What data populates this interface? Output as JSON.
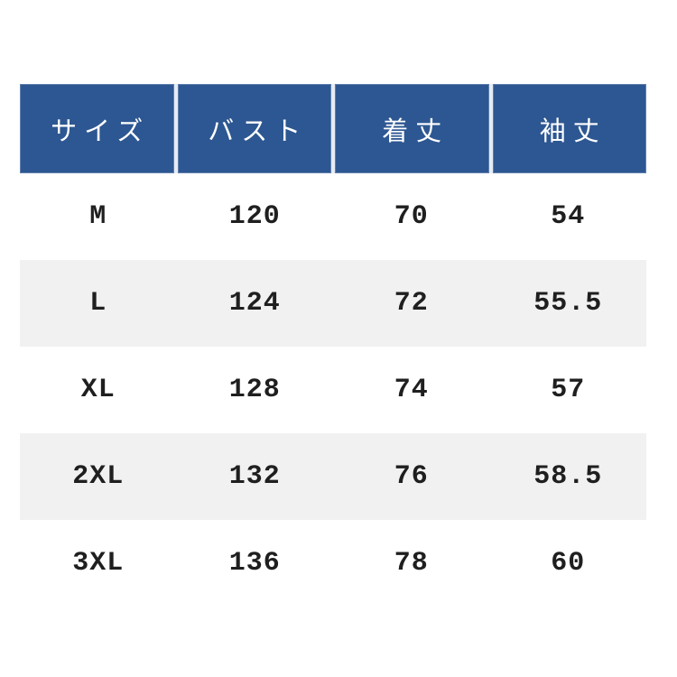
{
  "page": {
    "background_color": "#ffffff"
  },
  "table": {
    "header_bg_color": "#2d5792",
    "header_text_color": "#ffffff",
    "divider_color": "#e6ebf4",
    "alt_row_bg_color": "#f1f1f1",
    "row_text_color": "#1f1f1f",
    "columns": [
      "サイズ",
      "バスト",
      "着丈",
      "袖丈"
    ],
    "rows": [
      {
        "cells": [
          "M",
          "120",
          "70",
          "54"
        ]
      },
      {
        "cells": [
          "L",
          "124",
          "72",
          "55.5"
        ]
      },
      {
        "cells": [
          "XL",
          "128",
          "74",
          "57"
        ]
      },
      {
        "cells": [
          "2XL",
          "132",
          "76",
          "58.5"
        ]
      },
      {
        "cells": [
          "3XL",
          "136",
          "78",
          "60"
        ]
      }
    ]
  },
  "chart_data": {
    "type": "table",
    "title": "",
    "columns": [
      "サイズ",
      "バスト",
      "着丈",
      "袖丈"
    ],
    "rows": [
      [
        "M",
        120,
        70,
        54
      ],
      [
        "L",
        124,
        72,
        55.5
      ],
      [
        "XL",
        128,
        74,
        57
      ],
      [
        "2XL",
        132,
        76,
        58.5
      ],
      [
        "3XL",
        136,
        78,
        60
      ]
    ],
    "layout_hints": {
      "header_style": "dark-blue filled, white serif text, thin light dividers",
      "body_style": "alternating white / light-gray full-width bands, no column rules",
      "alignment": "all cells center-aligned"
    }
  }
}
